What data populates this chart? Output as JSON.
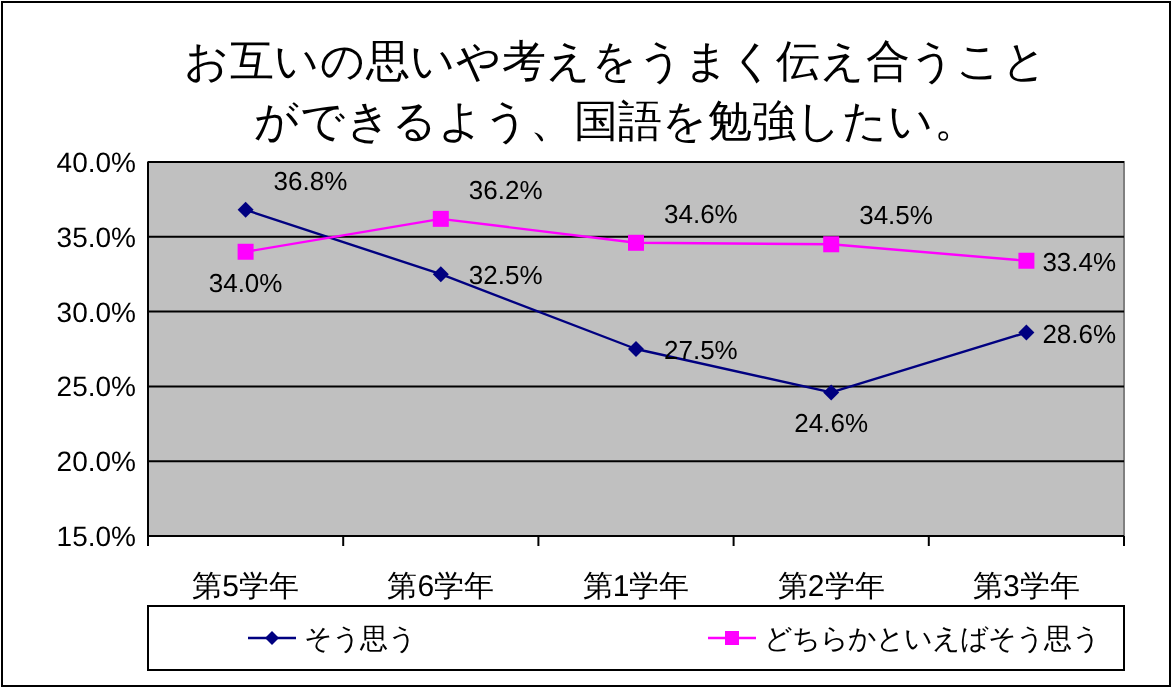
{
  "chart_data": {
    "type": "line",
    "title": "お互いの思いや考えをうまく伝え合うことができるよう、国語を勉強したい。",
    "categories": [
      "第5学年",
      "第6学年",
      "第1学年",
      "第2学年",
      "第3学年"
    ],
    "series": [
      {
        "name": "そう思う",
        "color": "#000080",
        "marker": "diamond",
        "values": [
          36.8,
          32.5,
          27.5,
          24.6,
          28.6
        ],
        "value_labels": [
          "36.8%",
          "32.5%",
          "27.5%",
          "24.6%",
          "28.6%"
        ]
      },
      {
        "name": "どちらかといえばそう思う",
        "color": "#ff00ff",
        "marker": "square",
        "values": [
          34.0,
          36.2,
          34.6,
          34.5,
          33.4
        ],
        "value_labels": [
          "34.0%",
          "36.2%",
          "34.6%",
          "34.5%",
          "33.4%"
        ]
      }
    ],
    "ylim": [
      15,
      40
    ],
    "yticks": [
      {
        "value": 15,
        "label": "15.0%"
      },
      {
        "value": 20,
        "label": "20.0%"
      },
      {
        "value": 25,
        "label": "25.0%"
      },
      {
        "value": 30,
        "label": "30.0%"
      },
      {
        "value": 35,
        "label": "35.0%"
      },
      {
        "value": 40,
        "label": "40.0%"
      }
    ],
    "grid": "y",
    "legend": "bottom"
  }
}
